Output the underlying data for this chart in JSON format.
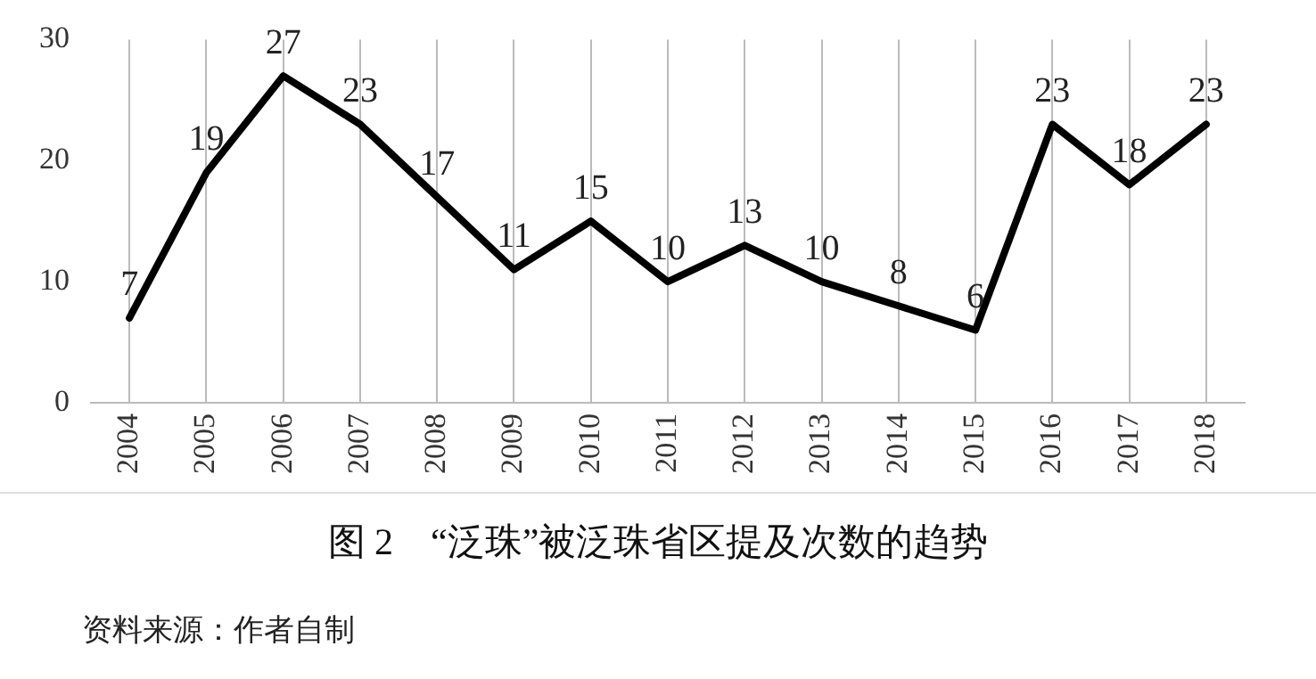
{
  "chart_data": {
    "type": "line",
    "title": "图 2　“泛珠”被泛珠省区提及次数的趋势",
    "categories": [
      "2004",
      "2005",
      "2006",
      "2007",
      "2008",
      "2009",
      "2010",
      "2011",
      "2012",
      "2013",
      "2014",
      "2015",
      "2016",
      "2017",
      "2018"
    ],
    "series": [
      {
        "color": "#000000",
        "values": [
          7,
          19,
          27,
          23,
          17,
          11,
          15,
          10,
          13,
          10,
          8,
          6,
          23,
          18,
          23
        ]
      }
    ],
    "ylim": [
      0,
      30
    ],
    "yticks": [
      0,
      10,
      20,
      30
    ],
    "grid": "x",
    "legend": false,
    "marker": "none",
    "line_style": "solid",
    "data_labels": true,
    "annotations": [
      "资料来源：作者自制"
    ]
  }
}
